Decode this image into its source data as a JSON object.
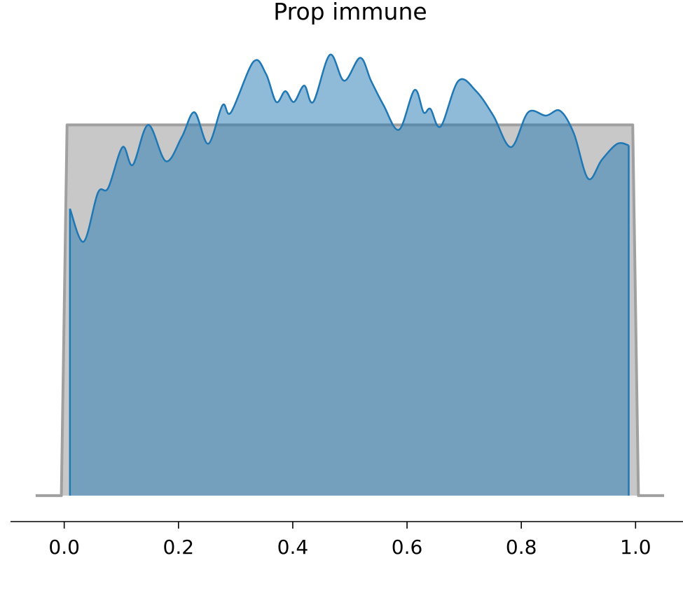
{
  "chart_data": {
    "type": "density",
    "title": "Prop immune",
    "xlim": [
      -0.094,
      1.083
    ],
    "xticks": [
      {
        "value": 0,
        "label": "0.0"
      },
      0.2,
      0.4,
      0.6,
      0.8,
      {
        "value": 1,
        "label": "1.0"
      }
    ],
    "ylim": [
      -0.07,
      1.25
    ],
    "series": [
      {
        "color": "#a0a0a0",
        "fill": "#c8c8c8",
        "x": [
          -0.05,
          -0.005,
          0.005,
          0.995,
          1.005,
          1.05
        ],
        "values": [
          0,
          0,
          1,
          1,
          0,
          0
        ]
      },
      {
        "color": "#1f77b4",
        "fill": "rgba(31,119,180,0.5)",
        "x": [
          0.01,
          0.034,
          0.059,
          0.077,
          0.102,
          0.12,
          0.147,
          0.178,
          0.206,
          0.228,
          0.252,
          0.277,
          0.292,
          0.331,
          0.353,
          0.371,
          0.387,
          0.402,
          0.42,
          0.436,
          0.465,
          0.49,
          0.518,
          0.537,
          0.559,
          0.586,
          0.613,
          0.629,
          0.641,
          0.659,
          0.69,
          0.721,
          0.751,
          0.782,
          0.812,
          0.843,
          0.868,
          0.892,
          0.917,
          0.941,
          0.968,
          0.988
        ],
        "values": [
          0.774,
          0.685,
          0.817,
          0.83,
          0.94,
          0.892,
          1.0,
          0.902,
          0.968,
          1.034,
          0.949,
          1.053,
          1.034,
          1.17,
          1.138,
          1.062,
          1.091,
          1.062,
          1.106,
          1.062,
          1.189,
          1.119,
          1.181,
          1.119,
          1.053,
          0.987,
          1.094,
          1.034,
          1.043,
          0.996,
          1.119,
          1.091,
          1.025,
          0.94,
          1.034,
          1.025,
          1.038,
          0.977,
          0.855,
          0.906,
          0.949,
          0.945
        ]
      }
    ]
  }
}
